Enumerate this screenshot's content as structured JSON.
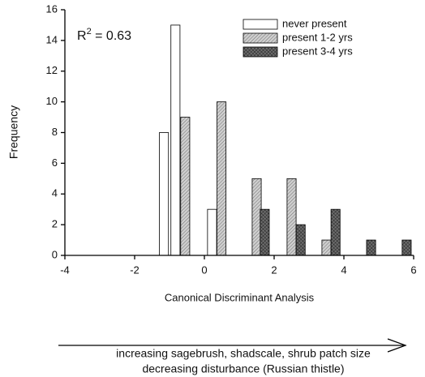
{
  "chart_data": {
    "type": "bar",
    "y_label": "Frequency",
    "x_label": "Canonical Discriminant Analysis",
    "annotation": {
      "base": "R",
      "sup": "2",
      "rest": " = 0.63"
    },
    "caption": [
      "increasing sagebrush, shadscale, shrub patch size",
      "decreasing disturbance (Russian thistle)"
    ],
    "bar_width": 0.26,
    "series": [
      {
        "name": "never present",
        "color": "#ffffff",
        "pattern": "none",
        "x": [
          -1.16,
          -0.83,
          0.22
        ],
        "values": [
          8,
          15,
          3
        ]
      },
      {
        "name": "present 1-2 yrs",
        "color": "#cfcfcf",
        "pattern": "diagonal",
        "x": [
          -0.55,
          0.49,
          1.5,
          2.5,
          3.5
        ],
        "values": [
          9,
          10,
          5,
          5,
          1
        ]
      },
      {
        "name": "present 3-4 yrs",
        "color": "#6e6e6e",
        "pattern": "crosshatch",
        "x": [
          1.73,
          2.76,
          3.76,
          4.78,
          5.8
        ],
        "values": [
          3,
          2,
          3,
          1,
          1
        ]
      }
    ],
    "xlim": [
      -4,
      6
    ],
    "xticks": [
      -4,
      -2,
      0,
      2,
      4,
      6
    ],
    "ylim": [
      0,
      16
    ],
    "yticks": [
      0,
      2,
      4,
      6,
      8,
      10,
      12,
      14,
      16
    ],
    "legend": "upper right"
  }
}
